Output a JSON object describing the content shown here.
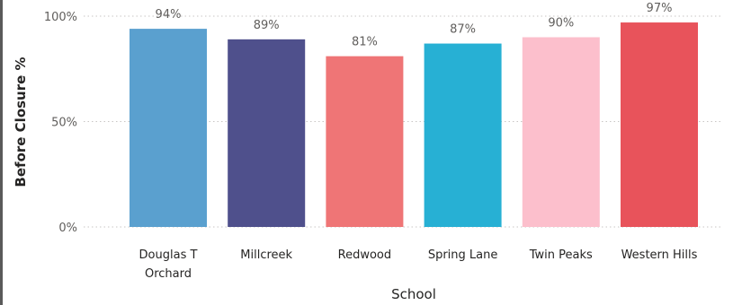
{
  "chart_data": {
    "type": "bar",
    "xlabel": "School",
    "ylabel": "Before Closure %",
    "ylim": [
      0,
      100
    ],
    "yticks": [
      "0%",
      "50%",
      "100%"
    ],
    "grid": true,
    "categories": [
      [
        "Douglas T",
        "Orchard"
      ],
      [
        "Millcreek"
      ],
      [
        "Redwood"
      ],
      [
        "Spring Lane"
      ],
      [
        "Twin Peaks"
      ],
      [
        "Western Hills"
      ]
    ],
    "values": [
      94,
      89,
      81,
      87,
      90,
      97
    ],
    "data_labels": [
      "94%",
      "89%",
      "81%",
      "87%",
      "90%",
      "97%"
    ],
    "colors": [
      "#5aa0cf",
      "#4f508c",
      "#ef7576",
      "#27b0d4",
      "#fcbfcc",
      "#e8535b"
    ]
  }
}
